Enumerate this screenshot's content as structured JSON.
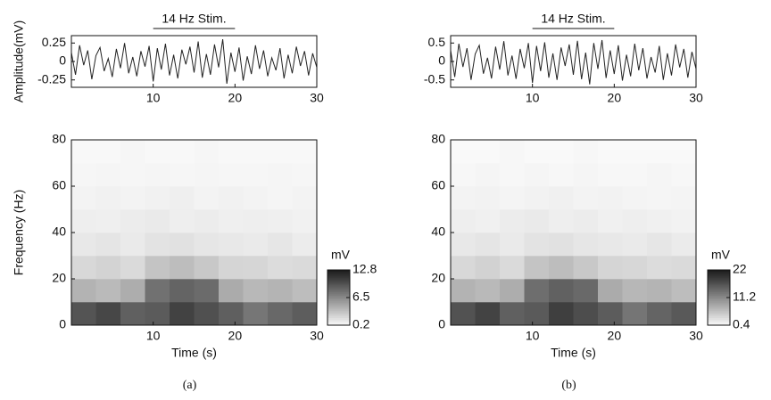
{
  "chart_data": [
    {
      "type": "line",
      "ylabel": "Amplitude(mV)",
      "annotation": {
        "text": "14 Hz Stim.",
        "x": [
          10,
          20
        ]
      },
      "x": [
        0,
        0.5,
        1,
        1.5,
        2,
        2.5,
        3,
        3.5,
        4,
        4.5,
        5,
        5.5,
        6,
        6.5,
        7,
        7.5,
        8,
        8.5,
        9,
        9.5,
        10,
        10.5,
        11,
        11.5,
        12,
        12.5,
        13,
        13.5,
        14,
        14.5,
        15,
        15.5,
        16,
        16.5,
        17,
        17.5,
        18,
        18.5,
        19,
        19.5,
        20,
        20.5,
        21,
        21.5,
        22,
        22.5,
        23,
        23.5,
        24,
        24.5,
        25,
        25.5,
        26,
        26.5,
        27,
        27.5,
        28,
        28.5,
        29,
        29.5,
        30
      ],
      "values": [
        0.12,
        -0.18,
        0.22,
        -0.05,
        0.15,
        -0.24,
        0.08,
        0.19,
        -0.13,
        0.04,
        -0.21,
        0.17,
        -0.09,
        0.25,
        -0.16,
        0.06,
        -0.2,
        0.14,
        -0.07,
        0.21,
        -0.27,
        0.18,
        -0.11,
        0.24,
        -0.19,
        0.09,
        -0.23,
        0.16,
        -0.04,
        0.2,
        -0.15,
        0.27,
        -0.22,
        0.1,
        -0.18,
        0.23,
        -0.08,
        0.3,
        -0.3,
        0.12,
        -0.14,
        0.19,
        -0.26,
        0.07,
        -0.17,
        0.22,
        -0.1,
        0.15,
        -0.2,
        0.05,
        -0.12,
        0.18,
        -0.23,
        0.09,
        -0.16,
        0.2,
        -0.06,
        0.14,
        -0.19,
        0.11,
        -0.08
      ],
      "color": "#222222",
      "xlim": [
        0,
        30
      ],
      "xticks": [
        10,
        20,
        30
      ],
      "ylim": [
        -0.35,
        0.35
      ],
      "yticks": [
        0.25,
        0,
        -0.25
      ]
    },
    {
      "type": "heatmap",
      "xlabel": "Time (s)",
      "ylabel": "Frequency (Hz)",
      "caption": "(a)",
      "x_bins": [
        0,
        3,
        6,
        9,
        12,
        15,
        18,
        21,
        24,
        27,
        30
      ],
      "y_bins": [
        0,
        10,
        20,
        30,
        40,
        50,
        60,
        70,
        80
      ],
      "z": [
        [
          9.5,
          10.2,
          8.8,
          9.1,
          10.5,
          9.7,
          8.9,
          7.6,
          8.4,
          9.0
        ],
        [
          4.2,
          3.8,
          4.5,
          7.9,
          8.6,
          8.2,
          4.6,
          3.9,
          4.1,
          3.6
        ],
        [
          2.1,
          2.4,
          2.0,
          3.2,
          3.6,
          3.0,
          2.3,
          2.2,
          1.9,
          2.0
        ],
        [
          1.2,
          1.4,
          1.1,
          1.5,
          1.6,
          1.3,
          1.2,
          1.1,
          1.3,
          1.0
        ],
        [
          0.9,
          0.8,
          1.0,
          1.1,
          0.9,
          1.0,
          0.8,
          0.9,
          0.8,
          0.7
        ],
        [
          0.6,
          0.7,
          0.6,
          0.7,
          0.8,
          0.6,
          0.7,
          0.6,
          0.5,
          0.6
        ],
        [
          0.4,
          0.5,
          0.4,
          0.5,
          0.4,
          0.5,
          0.4,
          0.4,
          0.5,
          0.4
        ],
        [
          0.3,
          0.3,
          0.4,
          0.3,
          0.3,
          0.4,
          0.3,
          0.3,
          0.3,
          0.3
        ]
      ],
      "colorbar_label": "mV",
      "clim": [
        0.2,
        12.8
      ],
      "cticks": [
        12.8,
        6.5,
        0.2
      ],
      "xlim": [
        0,
        30
      ],
      "xticks": [
        10,
        20,
        30
      ],
      "ylim": [
        0,
        80
      ],
      "yticks": [
        0,
        20,
        40,
        60,
        80
      ]
    },
    {
      "type": "line",
      "annotation": {
        "text": "14 Hz Stim.",
        "x": [
          10,
          20
        ]
      },
      "x": [
        0,
        0.5,
        1,
        1.5,
        2,
        2.5,
        3,
        3.5,
        4,
        4.5,
        5,
        5.5,
        6,
        6.5,
        7,
        7.5,
        8,
        8.5,
        9,
        9.5,
        10,
        10.5,
        11,
        11.5,
        12,
        12.5,
        13,
        13.5,
        14,
        14.5,
        15,
        15.5,
        16,
        16.5,
        17,
        17.5,
        18,
        18.5,
        19,
        19.5,
        20,
        20.5,
        21,
        21.5,
        22,
        22.5,
        23,
        23.5,
        24,
        24.5,
        25,
        25.5,
        26,
        26.5,
        27,
        27.5,
        28,
        28.5,
        29,
        29.5,
        30
      ],
      "values": [
        0.3,
        -0.42,
        0.48,
        -0.15,
        0.36,
        -0.5,
        0.2,
        0.44,
        -0.33,
        0.1,
        -0.46,
        0.4,
        -0.22,
        0.55,
        -0.38,
        0.16,
        -0.47,
        0.34,
        -0.18,
        0.5,
        -0.58,
        0.42,
        -0.26,
        0.52,
        -0.44,
        0.22,
        -0.5,
        0.38,
        -0.12,
        0.46,
        -0.36,
        0.56,
        -0.48,
        0.24,
        -0.62,
        0.5,
        -0.2,
        0.58,
        -0.45,
        0.3,
        -0.34,
        0.44,
        -0.52,
        0.18,
        -0.4,
        0.48,
        -0.24,
        0.36,
        -0.46,
        0.12,
        -0.3,
        0.42,
        -0.5,
        0.22,
        -0.38,
        0.46,
        -0.16,
        0.34,
        -0.44,
        0.26,
        -0.2
      ],
      "color": "#222222",
      "xlim": [
        0,
        30
      ],
      "xticks": [
        10,
        20,
        30
      ],
      "ylim": [
        -0.7,
        0.7
      ],
      "yticks": [
        0.5,
        0,
        -0.5
      ]
    },
    {
      "type": "heatmap",
      "xlabel": "Time (s)",
      "caption": "(b)",
      "x_bins": [
        0,
        3,
        6,
        9,
        12,
        15,
        18,
        21,
        24,
        27,
        30
      ],
      "y_bins": [
        0,
        10,
        20,
        30,
        40,
        50,
        60,
        70,
        80
      ],
      "z": [
        [
          16.5,
          18.0,
          15.2,
          15.8,
          18.4,
          17.0,
          15.6,
          13.2,
          14.8,
          15.9
        ],
        [
          7.2,
          6.6,
          7.8,
          13.8,
          15.1,
          14.3,
          8.0,
          6.8,
          7.1,
          6.3
        ],
        [
          3.7,
          4.2,
          3.5,
          5.6,
          6.3,
          5.2,
          4.0,
          3.8,
          3.3,
          3.5
        ],
        [
          2.1,
          2.4,
          1.9,
          2.6,
          2.8,
          2.3,
          2.1,
          1.9,
          2.3,
          1.8
        ],
        [
          1.6,
          1.4,
          1.7,
          1.9,
          1.6,
          1.7,
          1.4,
          1.6,
          1.4,
          1.2
        ],
        [
          1.1,
          1.2,
          1.0,
          1.2,
          1.4,
          1.1,
          1.2,
          1.0,
          0.9,
          1.0
        ],
        [
          0.7,
          0.9,
          0.7,
          0.9,
          0.7,
          0.9,
          0.7,
          0.7,
          0.9,
          0.7
        ],
        [
          0.5,
          0.5,
          0.7,
          0.5,
          0.5,
          0.7,
          0.5,
          0.5,
          0.5,
          0.5
        ]
      ],
      "colorbar_label": "mV",
      "clim": [
        0.4,
        22
      ],
      "cticks": [
        22,
        11.2,
        0.4
      ],
      "xlim": [
        0,
        30
      ],
      "xticks": [
        10,
        20,
        30
      ],
      "ylim": [
        0,
        80
      ],
      "yticks": [
        0,
        20,
        40,
        60,
        80
      ]
    }
  ]
}
